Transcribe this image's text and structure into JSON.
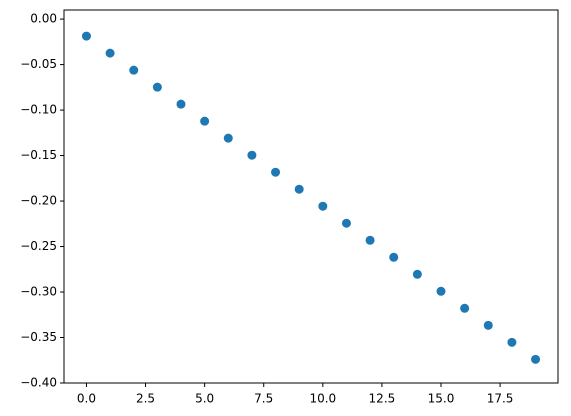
{
  "chart_data": {
    "type": "scatter",
    "color": "#1f77b4",
    "x": [
      0,
      1,
      2,
      3,
      4,
      5,
      6,
      7,
      8,
      9,
      10,
      11,
      12,
      13,
      14,
      15,
      16,
      17,
      18,
      19
    ],
    "values": [
      -0.0187,
      -0.0374,
      -0.0561,
      -0.0748,
      -0.0935,
      -0.1122,
      -0.1309,
      -0.1496,
      -0.1683,
      -0.187,
      -0.2057,
      -0.2244,
      -0.2431,
      -0.2618,
      -0.2805,
      -0.2992,
      -0.3179,
      -0.3366,
      -0.3553,
      -0.374
    ],
    "xlim": [
      -0.95,
      19.95
    ],
    "xticks": [
      {
        "value": 0,
        "label": "0.0"
      },
      2.5,
      {
        "value": 5,
        "label": "5.0"
      },
      7.5,
      {
        "value": 10,
        "label": "10.0"
      },
      12.5,
      {
        "value": 15,
        "label": "15.0"
      },
      17.5
    ],
    "ylim": [
      -0.4,
      0.01
    ],
    "yticks": [
      {
        "value": 0,
        "label": "0.00"
      },
      {
        "value": -0.05,
        "label": "−0.05"
      },
      {
        "value": -0.1,
        "label": "−0.10"
      },
      {
        "value": -0.15,
        "label": "−0.15"
      },
      {
        "value": -0.2,
        "label": "−0.20"
      },
      {
        "value": -0.25,
        "label": "−0.25"
      },
      {
        "value": -0.3,
        "label": "−0.30"
      },
      {
        "value": -0.35,
        "label": "−0.35"
      },
      {
        "value": -0.4,
        "label": "−0.40"
      }
    ]
  }
}
